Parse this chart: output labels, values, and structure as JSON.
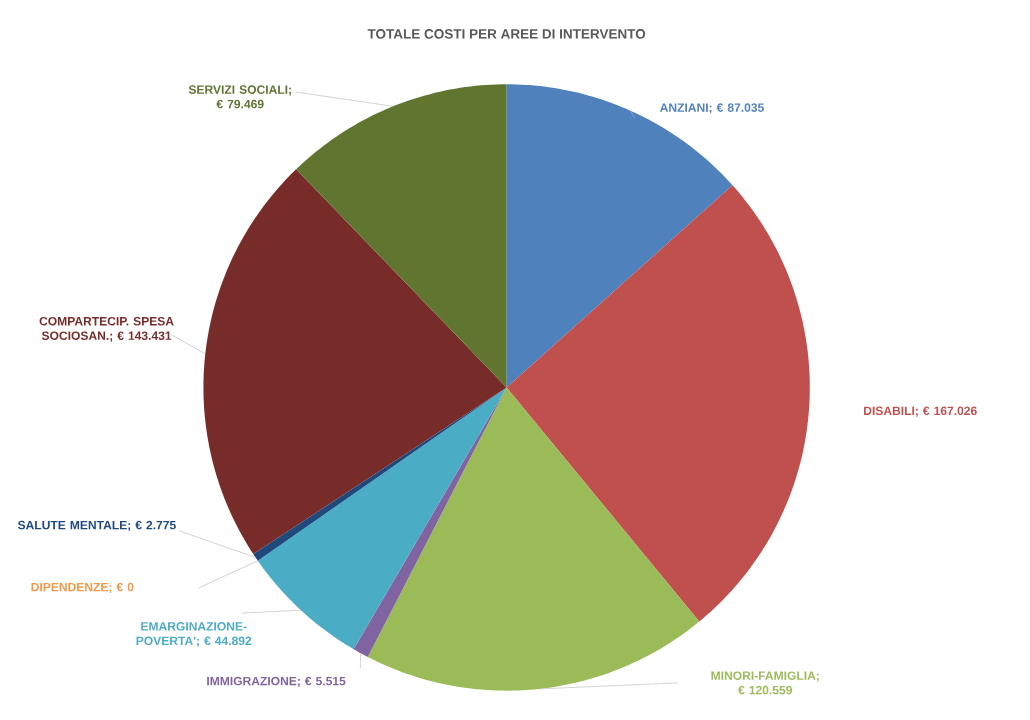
{
  "chart_data": {
    "type": "pie",
    "title": "TOTALE COSTI PER AREE DI INTERVENTO",
    "categories": [
      "ANZIANI",
      "DISABILI",
      "MINORI-FAMIGLIA",
      "IMMIGRAZIONE",
      "EMARGINAZIONE-POVERTA'",
      "DIPENDENZE",
      "SALUTE MENTALE",
      "COMPARTECIP. SPESA SOCIOSAN.",
      "SERVIZI SOCIALI"
    ],
    "values": [
      87035,
      167026,
      120559,
      5515,
      44892,
      0,
      2775,
      143431,
      79469
    ],
    "value_labels": [
      "; € 87.035",
      "; € 167.026",
      "; € 120.559",
      "; € 5.515",
      "; € 44.892",
      "; € 0",
      "; € 2.775",
      "; € 143.431",
      "; € 79.469"
    ],
    "colors": [
      "#4f81bd",
      "#c0504d",
      "#9bbb59",
      "#8064a2",
      "#4bacc6",
      "#f79646",
      "#1f497d",
      "#772c2a",
      "#5f7530"
    ]
  }
}
